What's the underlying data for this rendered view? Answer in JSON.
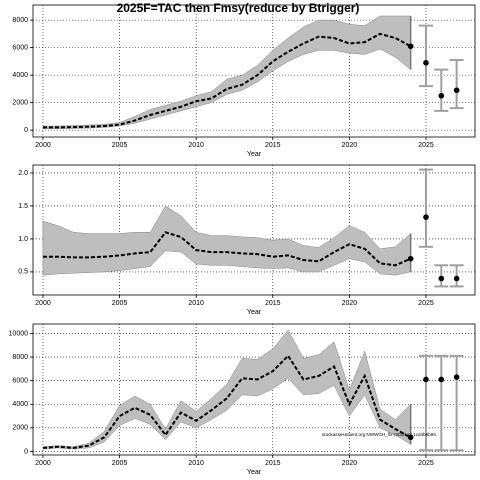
{
  "chart_data": [
    {
      "type": "line",
      "title": "2025F=TAC then Fmsy(reduce by Btrigger)",
      "x_label": "Year",
      "x": [
        2000,
        2001,
        2002,
        2003,
        2004,
        2005,
        2006,
        2007,
        2008,
        2009,
        2010,
        2011,
        2012,
        2013,
        2014,
        2015,
        2016,
        2017,
        2018,
        2019,
        2020,
        2021,
        2022,
        2023,
        2024
      ],
      "values": [
        200,
        200,
        220,
        250,
        300,
        400,
        700,
        1100,
        1400,
        1700,
        2100,
        2300,
        3000,
        3300,
        4000,
        5000,
        5700,
        6300,
        6800,
        6700,
        6300,
        6400,
        7000,
        6700,
        6100
      ],
      "lower": [
        100,
        100,
        120,
        150,
        200,
        300,
        500,
        800,
        1100,
        1400,
        1700,
        2000,
        2600,
        2900,
        3500,
        4300,
        5000,
        5500,
        5800,
        5800,
        5600,
        5500,
        5900,
        5300,
        4400
      ],
      "upper": [
        300,
        300,
        330,
        370,
        420,
        550,
        1000,
        1500,
        1800,
        2100,
        2500,
        2800,
        3700,
        4000,
        4700,
        5800,
        6700,
        7500,
        8000,
        8000,
        7700,
        7600,
        8300,
        8300,
        8300
      ],
      "proj_x": [
        2025,
        2026,
        2027
      ],
      "proj_values": [
        4900,
        2500,
        2900
      ],
      "proj_lower": [
        3200,
        1400,
        1600
      ],
      "proj_upper": [
        7600,
        4400,
        5100
      ],
      "color": "#000000",
      "band_color": "#bebebe",
      "proj_color": "#a0a0a0",
      "xlim": [
        1999.35,
        2028.2
      ],
      "xticks": [
        2000,
        2005,
        2010,
        2015,
        2020,
        2025
      ],
      "ylim": [
        -500,
        9100
      ],
      "yticks": [
        0,
        2000,
        4000,
        6000,
        8000
      ],
      "grid": true
    },
    {
      "type": "line",
      "x_label": "Year",
      "x": [
        2000,
        2001,
        2002,
        2003,
        2004,
        2005,
        2006,
        2007,
        2008,
        2009,
        2010,
        2011,
        2012,
        2013,
        2014,
        2015,
        2016,
        2017,
        2018,
        2019,
        2020,
        2021,
        2022,
        2023,
        2024
      ],
      "values": [
        0.73,
        0.73,
        0.72,
        0.72,
        0.73,
        0.75,
        0.78,
        0.8,
        1.1,
        1.03,
        0.83,
        0.8,
        0.8,
        0.78,
        0.77,
        0.73,
        0.75,
        0.68,
        0.66,
        0.8,
        0.92,
        0.85,
        0.63,
        0.6,
        0.7
      ],
      "lower": [
        0.45,
        0.47,
        0.48,
        0.49,
        0.5,
        0.52,
        0.55,
        0.58,
        0.82,
        0.8,
        0.62,
        0.6,
        0.6,
        0.58,
        0.56,
        0.55,
        0.56,
        0.5,
        0.5,
        0.6,
        0.7,
        0.65,
        0.47,
        0.45,
        0.5
      ],
      "upper": [
        1.27,
        1.2,
        1.1,
        1.08,
        1.08,
        1.08,
        1.1,
        1.1,
        1.5,
        1.35,
        1.1,
        1.05,
        1.05,
        1.03,
        1.02,
        0.98,
        1.0,
        0.9,
        0.87,
        1.02,
        1.2,
        1.1,
        0.85,
        0.88,
        1.08
      ],
      "proj_x": [
        2025,
        2026,
        2027
      ],
      "proj_values": [
        1.33,
        0.4,
        0.4
      ],
      "proj_lower": [
        0.88,
        0.28,
        0.28
      ],
      "proj_upper": [
        2.05,
        0.6,
        0.6
      ],
      "color": "#000000",
      "band_color": "#bebebe",
      "proj_color": "#a0a0a0",
      "xlim": [
        1999.35,
        2028.2
      ],
      "xticks": [
        2000,
        2005,
        2010,
        2015,
        2020,
        2025
      ],
      "ylim": [
        0.15,
        2.12
      ],
      "yticks": [
        0.5,
        {
          "value": 1,
          "label": "1.0"
        },
        1.5,
        {
          "value": 2,
          "label": "2.0"
        }
      ],
      "grid": true
    },
    {
      "type": "line",
      "x_label": "Year",
      "annotation": "stockassessment.org NWWGH_flx-r2020_pl 1cd4b6b86",
      "x": [
        2000,
        2001,
        2002,
        2003,
        2004,
        2005,
        2006,
        2007,
        2008,
        2009,
        2010,
        2011,
        2012,
        2013,
        2014,
        2015,
        2016,
        2017,
        2018,
        2019,
        2020,
        2021,
        2022,
        2023,
        2024
      ],
      "values": [
        300,
        400,
        300,
        500,
        1200,
        3000,
        3700,
        3100,
        1400,
        3300,
        2600,
        3500,
        4500,
        6200,
        6100,
        6800,
        8100,
        6100,
        6400,
        7200,
        4000,
        6400,
        2700,
        1900,
        1200
      ],
      "lower": [
        200,
        300,
        200,
        300,
        800,
        2200,
        2800,
        2300,
        1000,
        2500,
        2000,
        2700,
        3500,
        4800,
        4700,
        5300,
        6200,
        4800,
        4900,
        5600,
        3000,
        4800,
        2000,
        1400,
        600
      ],
      "upper": [
        400,
        500,
        400,
        700,
        1700,
        3900,
        4700,
        4000,
        1900,
        4300,
        3400,
        4500,
        5700,
        7900,
        7800,
        8700,
        10300,
        7900,
        8200,
        9300,
        5200,
        8500,
        3600,
        2700,
        4000
      ],
      "proj_x": [
        2025,
        2026,
        2027
      ],
      "proj_values": [
        6100,
        6100,
        6300
      ],
      "proj_lower": [
        100,
        100,
        100
      ],
      "proj_upper": [
        8100,
        8100,
        8100
      ],
      "color": "#000000",
      "band_color": "#bebebe",
      "proj_color": "#a0a0a0",
      "xlim": [
        1999.35,
        2028.2
      ],
      "xticks": [
        2000,
        2005,
        2010,
        2015,
        2020,
        2025
      ],
      "ylim": [
        -300,
        10800
      ],
      "yticks": [
        0,
        2000,
        4000,
        6000,
        8000,
        10000
      ],
      "grid": true
    }
  ]
}
